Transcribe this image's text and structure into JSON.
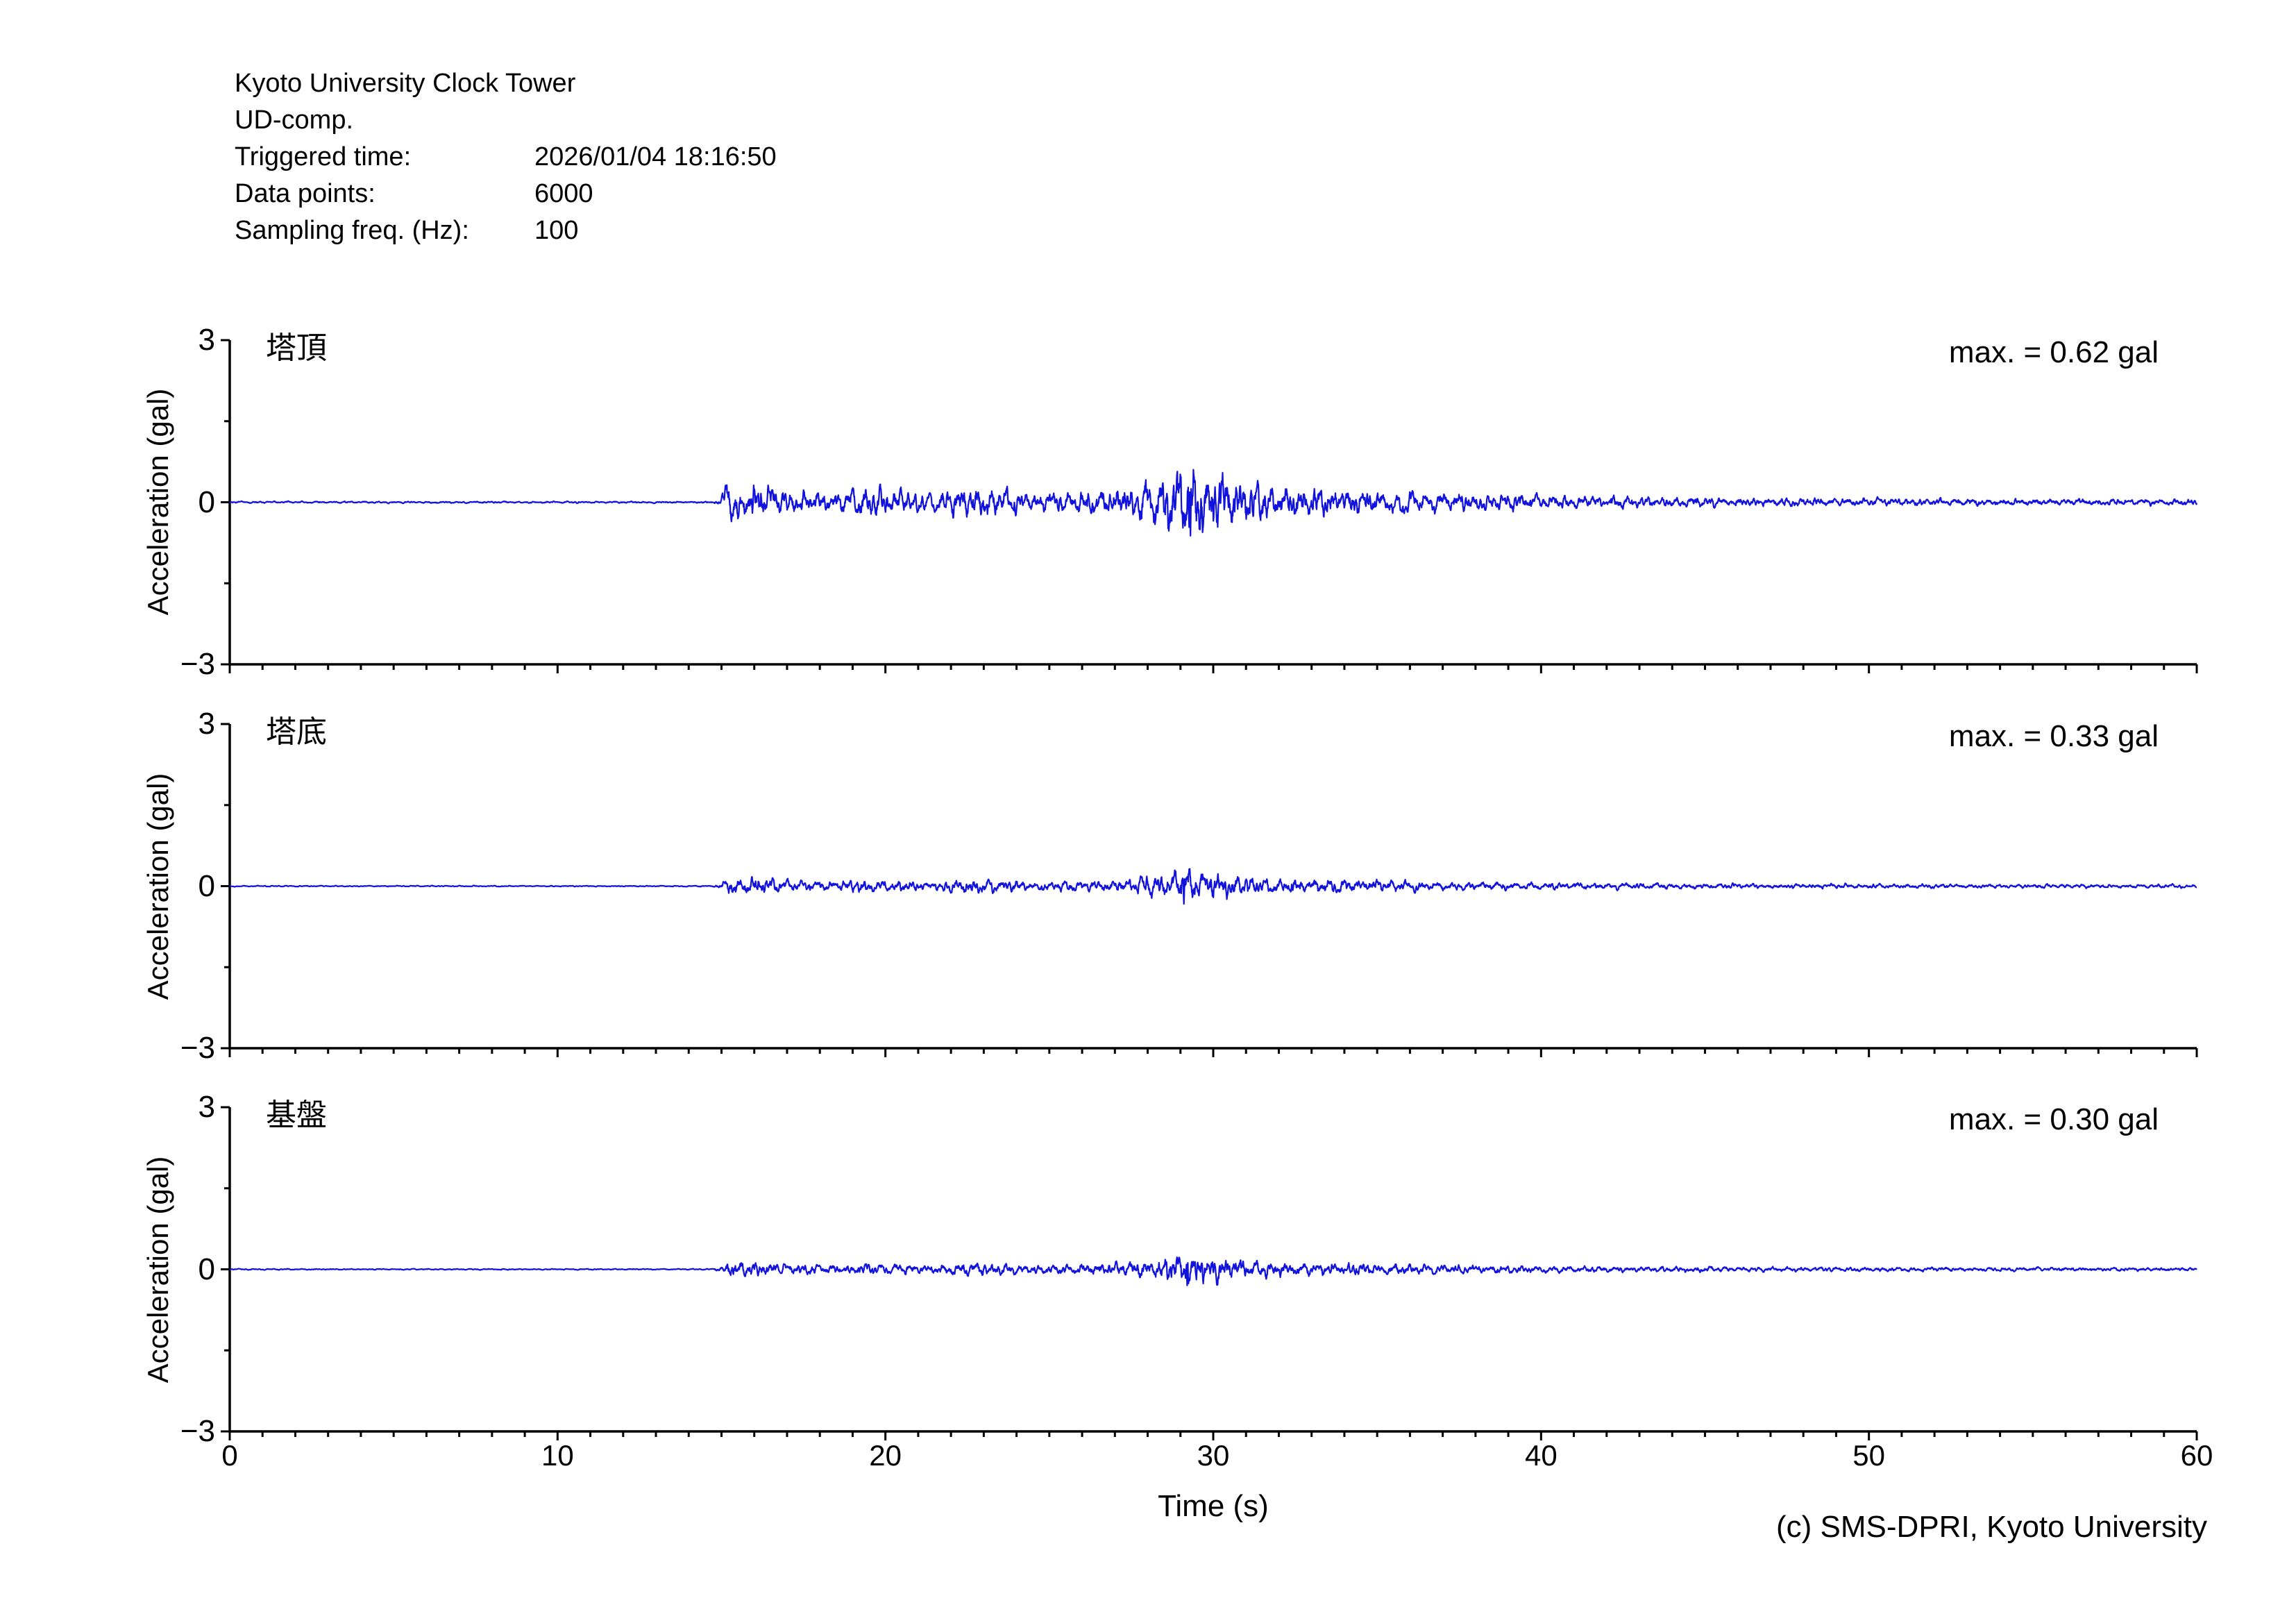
{
  "header": {
    "title": "Kyoto University Clock Tower",
    "component": "UD-comp.",
    "triggered_time_label": "Triggered time:",
    "triggered_time": "2026/01/04 18:16:50",
    "data_points_label": "Data points:",
    "data_points": "6000",
    "sampling_freq_label": "Sampling freq. (Hz):",
    "sampling_freq": "100"
  },
  "footer": {
    "copyright": "(c) SMS-DPRI, Kyoto University"
  },
  "chart_data": {
    "type": "line",
    "title": "",
    "xlabel": "Time (s)",
    "ylabel": "Acceleration (gal)",
    "xlim": [
      0,
      60
    ],
    "ylim": [
      -3,
      3
    ],
    "xticks": [
      0,
      10,
      20,
      30,
      40,
      50,
      60
    ],
    "x_minor_tick_interval_s": 1,
    "yticks": [
      3,
      0,
      -3
    ],
    "y_minor_ticks": [
      1.5,
      -1.5
    ],
    "grid": false,
    "legend": "none",
    "n_points": 6000,
    "sampling_freq_hz": 100,
    "line_color": "#1212dd",
    "axis_color": "#000000",
    "panels": [
      {
        "label": "塔頂",
        "max_label": "max. = 0.62 gal",
        "max_gal": 0.62,
        "peak_time_s": 29.3,
        "peak_sign": -1,
        "seed": 20260104,
        "envelope_gal": [
          [
            0,
            0.013
          ],
          [
            14.7,
            0.013
          ],
          [
            14.95,
            0.05
          ],
          [
            15.15,
            0.28
          ],
          [
            15.8,
            0.3
          ],
          [
            16.4,
            0.22
          ],
          [
            17.3,
            0.16
          ],
          [
            18.4,
            0.15
          ],
          [
            19.3,
            0.23
          ],
          [
            20.3,
            0.18
          ],
          [
            21.3,
            0.13
          ],
          [
            22.6,
            0.26
          ],
          [
            23.4,
            0.21
          ],
          [
            24.5,
            0.15
          ],
          [
            25.5,
            0.16
          ],
          [
            26.5,
            0.18
          ],
          [
            27.6,
            0.26
          ],
          [
            28.6,
            0.42
          ],
          [
            29.3,
            0.6
          ],
          [
            30.1,
            0.42
          ],
          [
            31.0,
            0.3
          ],
          [
            32.0,
            0.24
          ],
          [
            33.5,
            0.2
          ],
          [
            35.5,
            0.16
          ],
          [
            38,
            0.12
          ],
          [
            41,
            0.095
          ],
          [
            44,
            0.075
          ],
          [
            48,
            0.06
          ],
          [
            52,
            0.05
          ],
          [
            60,
            0.045
          ]
        ]
      },
      {
        "label": "塔底",
        "max_label": "max. = 0.33 gal",
        "max_gal": 0.33,
        "peak_time_s": 29.1,
        "peak_sign": -1,
        "seed": 18165,
        "envelope_gal": [
          [
            0,
            0.01
          ],
          [
            14.7,
            0.01
          ],
          [
            14.95,
            0.04
          ],
          [
            15.15,
            0.15
          ],
          [
            15.8,
            0.16
          ],
          [
            16.4,
            0.12
          ],
          [
            17.3,
            0.09
          ],
          [
            18.4,
            0.085
          ],
          [
            19.3,
            0.12
          ],
          [
            20.3,
            0.1
          ],
          [
            21.3,
            0.075
          ],
          [
            22.6,
            0.13
          ],
          [
            23.4,
            0.11
          ],
          [
            24.5,
            0.085
          ],
          [
            25.5,
            0.09
          ],
          [
            26.5,
            0.1
          ],
          [
            27.6,
            0.15
          ],
          [
            28.6,
            0.23
          ],
          [
            29.1,
            0.32
          ],
          [
            30.1,
            0.23
          ],
          [
            31.0,
            0.17
          ],
          [
            32.0,
            0.14
          ],
          [
            33.5,
            0.12
          ],
          [
            35.5,
            0.1
          ],
          [
            38,
            0.075
          ],
          [
            41,
            0.06
          ],
          [
            44,
            0.05
          ],
          [
            48,
            0.042
          ],
          [
            52,
            0.036
          ],
          [
            60,
            0.032
          ]
        ]
      },
      {
        "label": "基盤",
        "max_label": "max. = 0.30 gal",
        "max_gal": 0.3,
        "peak_time_s": 29.2,
        "peak_sign": -1,
        "seed": 6000100,
        "envelope_gal": [
          [
            0,
            0.01
          ],
          [
            14.7,
            0.01
          ],
          [
            14.95,
            0.04
          ],
          [
            15.15,
            0.14
          ],
          [
            15.8,
            0.15
          ],
          [
            16.4,
            0.11
          ],
          [
            17.3,
            0.085
          ],
          [
            18.4,
            0.08
          ],
          [
            19.3,
            0.115
          ],
          [
            20.3,
            0.095
          ],
          [
            21.3,
            0.07
          ],
          [
            22.6,
            0.12
          ],
          [
            23.4,
            0.105
          ],
          [
            24.5,
            0.08
          ],
          [
            25.5,
            0.085
          ],
          [
            26.5,
            0.095
          ],
          [
            27.6,
            0.14
          ],
          [
            28.6,
            0.21
          ],
          [
            29.2,
            0.29
          ],
          [
            30.1,
            0.21
          ],
          [
            31.0,
            0.16
          ],
          [
            32.0,
            0.13
          ],
          [
            33.5,
            0.115
          ],
          [
            35.5,
            0.095
          ],
          [
            38,
            0.07
          ],
          [
            41,
            0.058
          ],
          [
            44,
            0.048
          ],
          [
            48,
            0.04
          ],
          [
            52,
            0.035
          ],
          [
            60,
            0.03
          ]
        ]
      }
    ]
  }
}
